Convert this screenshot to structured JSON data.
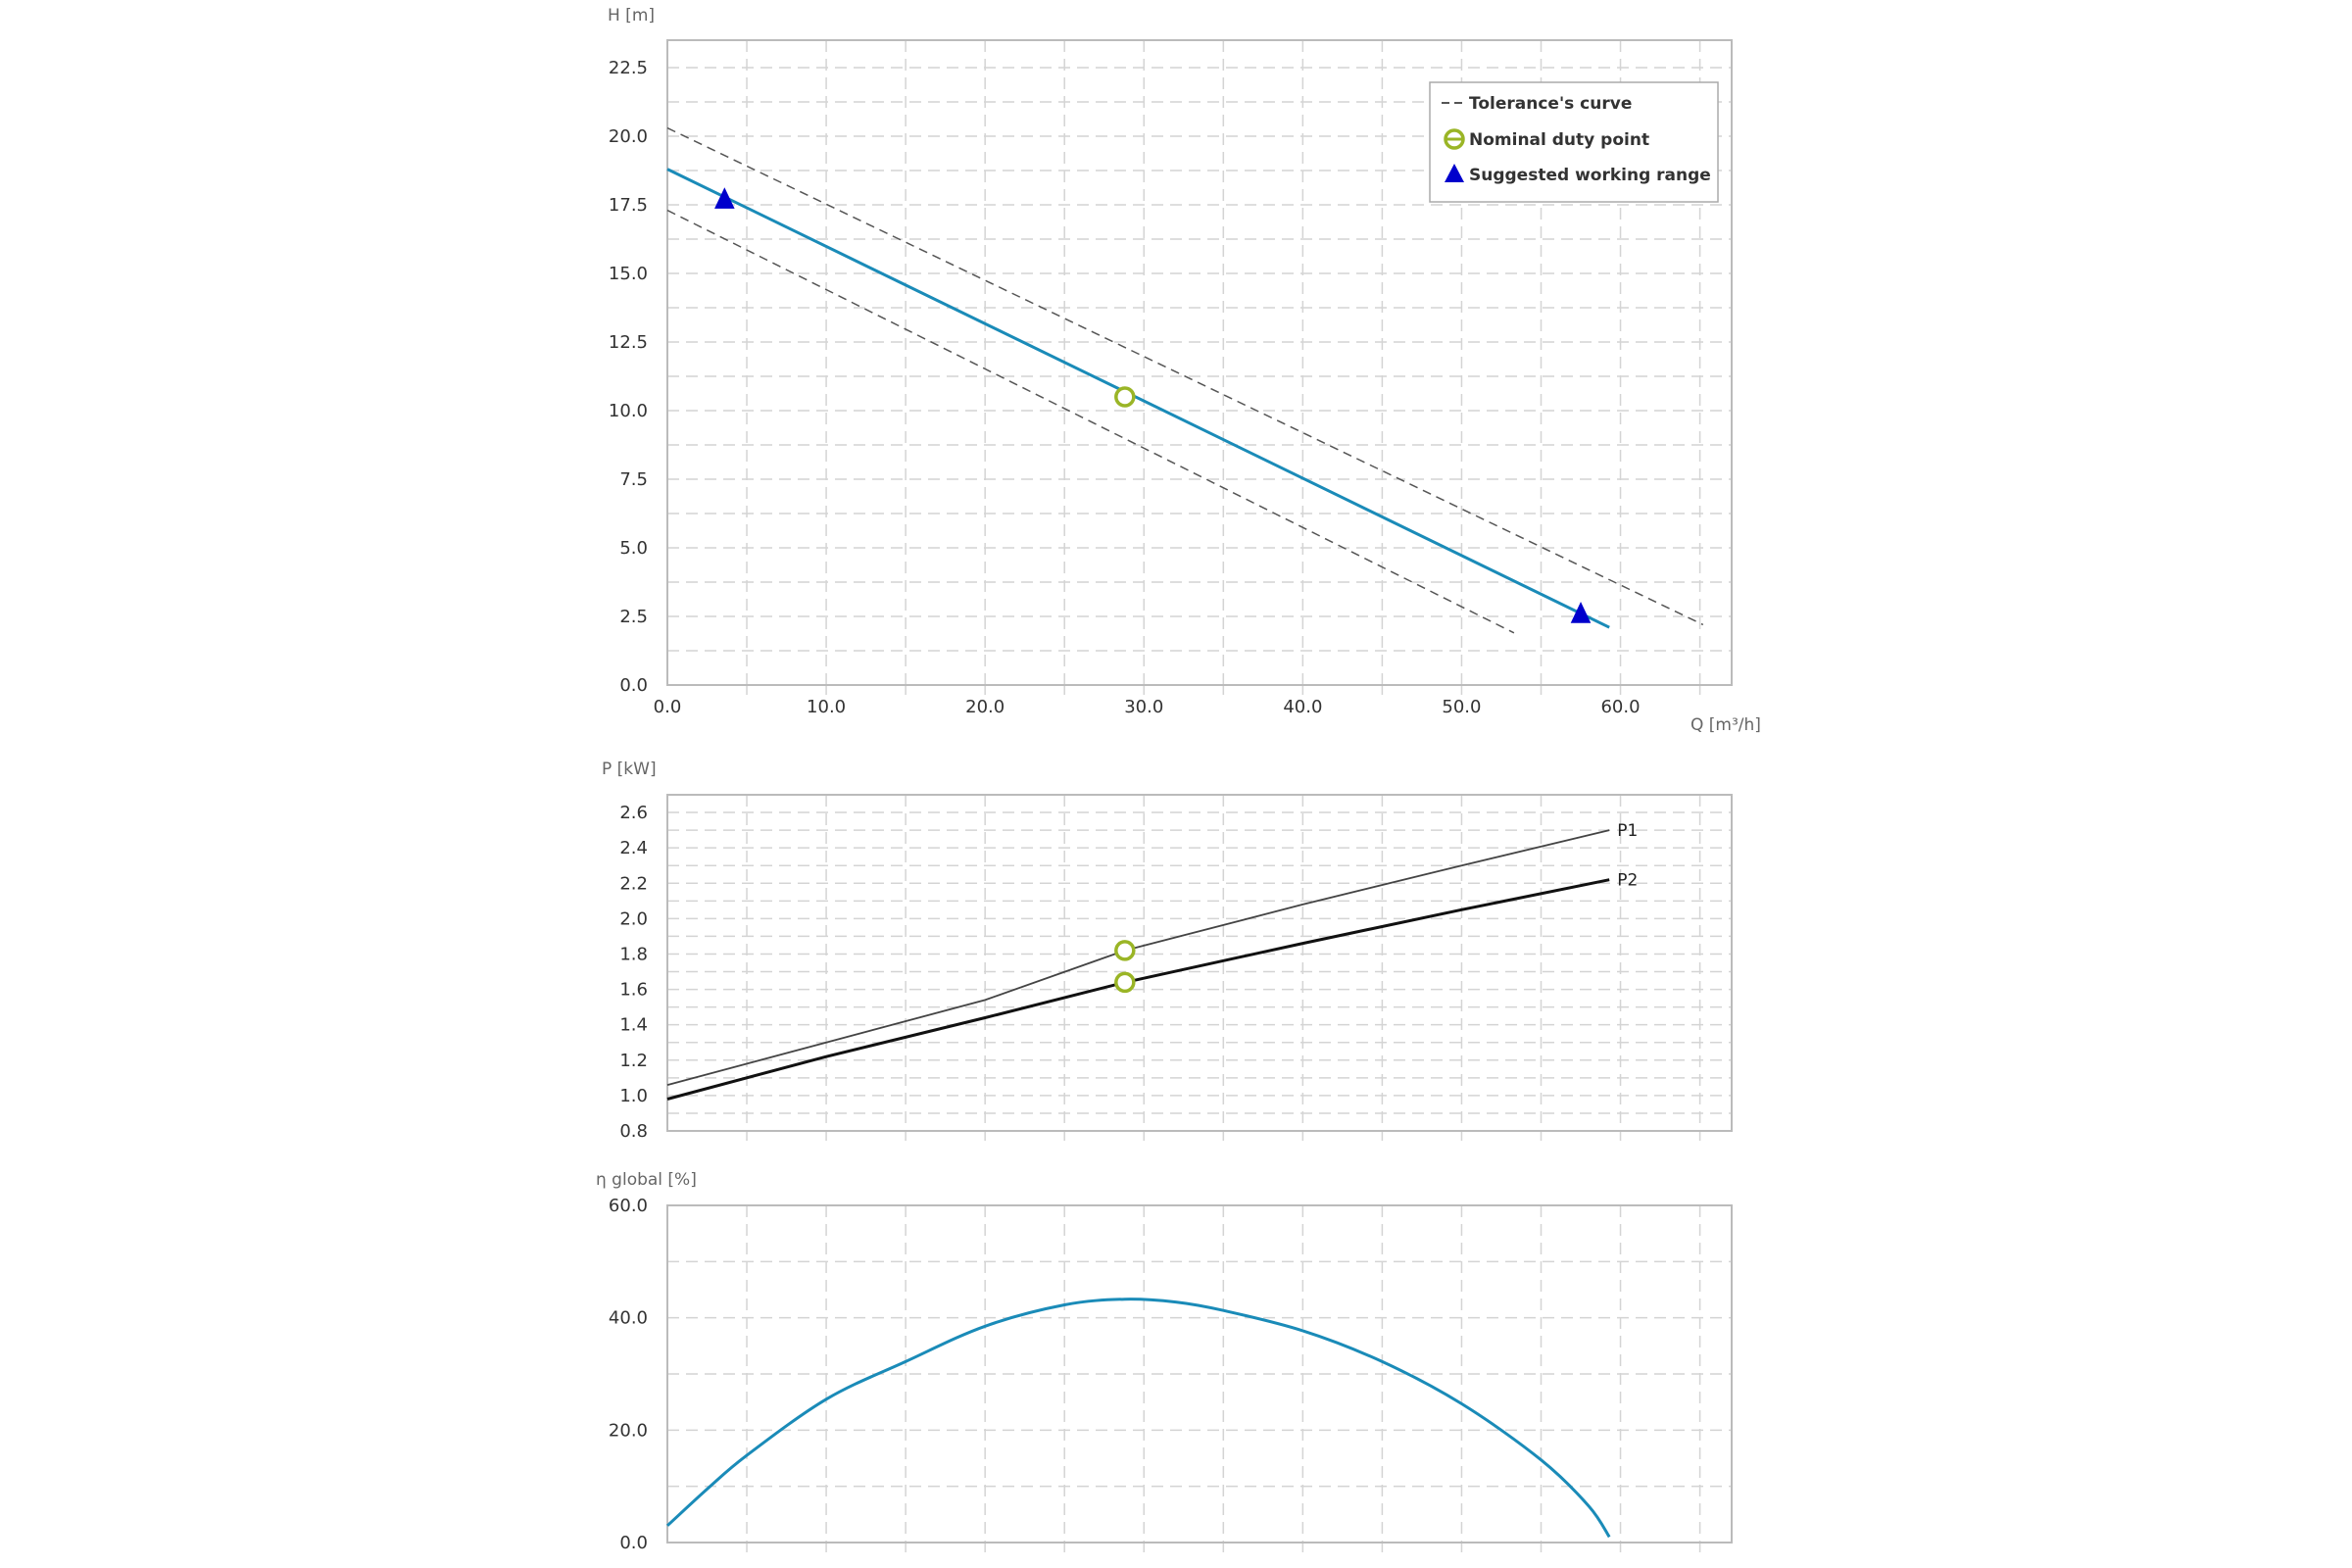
{
  "colors": {
    "curve": "#1a8bb8",
    "tolerance": "#555555",
    "duty_point": "#9ab526",
    "working_range": "#0000cc",
    "p1": "#444444",
    "p2": "#111111",
    "grid": "#d4d4d4",
    "frame": "#bbbbbb"
  },
  "chart_data": [
    {
      "id": "head",
      "type": "line",
      "xlabel": "Q [m³/h]",
      "ylabel": "H [m]",
      "xlim": [
        0,
        67
      ],
      "ylim": [
        0,
        23.5
      ],
      "xticks": [
        "0.0",
        "10.0",
        "20.0",
        "30.0",
        "40.0",
        "50.0",
        "60.0"
      ],
      "yticks": [
        "0.0",
        "2.5",
        "5.0",
        "7.5",
        "10.0",
        "12.5",
        "15.0",
        "17.5",
        "20.0",
        "22.5"
      ],
      "grid": true,
      "legend_position": "top-right",
      "legend": [
        {
          "key": "tolerance",
          "label": "Tolerance's curve"
        },
        {
          "key": "duty",
          "label": "Nominal duty point"
        },
        {
          "key": "range",
          "label": "Suggested working range"
        }
      ],
      "series": [
        {
          "key": "curve",
          "style": "solid",
          "points": [
            [
              0,
              18.8
            ],
            [
              59.3,
              2.1
            ]
          ]
        },
        {
          "key": "tolerance_upper",
          "style": "dashed",
          "points": [
            [
              0,
              20.3
            ],
            [
              65.2,
              2.2
            ]
          ]
        },
        {
          "key": "tolerance_lower",
          "style": "dashed",
          "points": [
            [
              0,
              17.3
            ],
            [
              53.3,
              1.9
            ]
          ]
        }
      ],
      "duty_points": [
        [
          28.8,
          10.5
        ]
      ],
      "working_range": [
        [
          3.6,
          17.7
        ],
        [
          57.5,
          2.6
        ]
      ]
    },
    {
      "id": "power",
      "type": "line",
      "xlabel": "",
      "ylabel": "P [kW]",
      "xlim": [
        0,
        67
      ],
      "ylim": [
        0.8,
        2.7
      ],
      "xticks": [],
      "yticks": [
        "0.8",
        "1.0",
        "1.2",
        "1.4",
        "1.6",
        "1.8",
        "2.0",
        "2.2",
        "2.4",
        "2.6"
      ],
      "grid": true,
      "series": [
        {
          "name": "P1",
          "key": "p1",
          "points": [
            [
              0,
              1.06
            ],
            [
              10,
              1.3
            ],
            [
              20,
              1.54
            ],
            [
              28.8,
              1.82
            ],
            [
              40,
              2.08
            ],
            [
              50,
              2.3
            ],
            [
              59.3,
              2.5
            ]
          ]
        },
        {
          "name": "P2",
          "key": "p2",
          "points": [
            [
              0,
              0.98
            ],
            [
              10,
              1.22
            ],
            [
              20,
              1.44
            ],
            [
              28.8,
              1.64
            ],
            [
              40,
              1.86
            ],
            [
              50,
              2.05
            ],
            [
              59.3,
              2.22
            ]
          ]
        }
      ],
      "duty_points": [
        [
          28.8,
          1.82
        ],
        [
          28.8,
          1.64
        ]
      ]
    },
    {
      "id": "efficiency",
      "type": "line",
      "xlabel": "",
      "ylabel": "η global [%]",
      "xlim": [
        0,
        67
      ],
      "ylim": [
        0,
        60
      ],
      "xticks": [],
      "yticks": [
        "0.0",
        "20.0",
        "40.0",
        "60.0"
      ],
      "grid": true,
      "series": [
        {
          "key": "curve",
          "points": [
            [
              0,
              3.0
            ],
            [
              2.5,
              9.5
            ],
            [
              5,
              15.5
            ],
            [
              10,
              25.5
            ],
            [
              15,
              32.2
            ],
            [
              20,
              38.5
            ],
            [
              25,
              42.3
            ],
            [
              28.8,
              43.3
            ],
            [
              32,
              42.8
            ],
            [
              35,
              41.3
            ],
            [
              40,
              37.7
            ],
            [
              45,
              32.2
            ],
            [
              50,
              24.7
            ],
            [
              55,
              14.7
            ],
            [
              58,
              6.5
            ],
            [
              59.3,
              1.0
            ]
          ]
        }
      ]
    }
  ]
}
